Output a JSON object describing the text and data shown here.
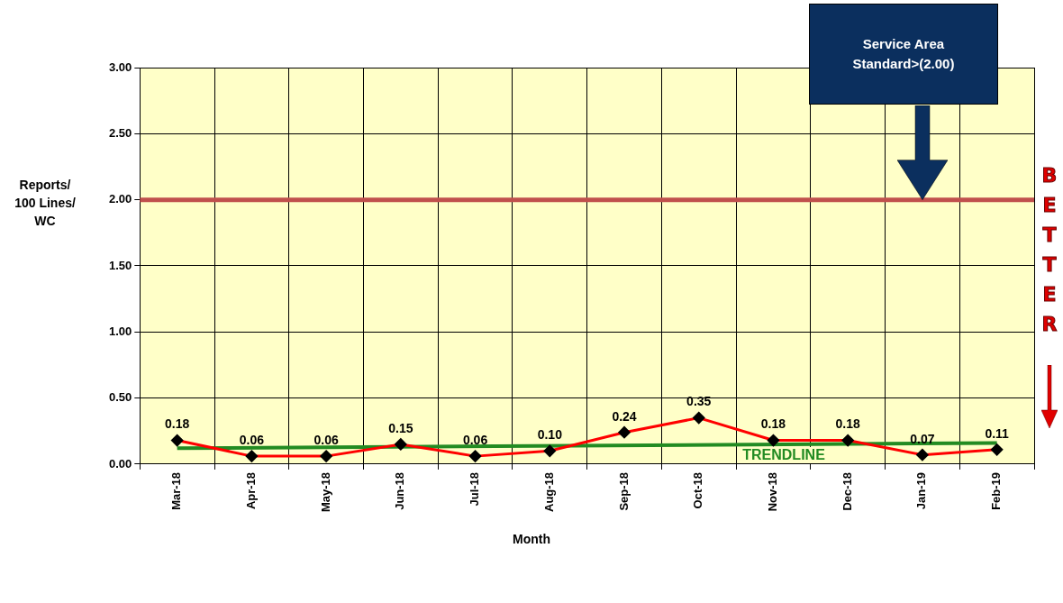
{
  "chart_data": {
    "type": "line",
    "xlabel": "Month",
    "ylabel": "Reports/\n100 Lines/\nWC",
    "categories": [
      "Mar-18",
      "Apr-18",
      "May-18",
      "Jun-18",
      "Jul-18",
      "Aug-18",
      "Sep-18",
      "Oct-18",
      "Nov-18",
      "Dec-18",
      "Jan-19",
      "Feb-19"
    ],
    "series": [
      {
        "color": "#ff0000",
        "values": [
          0.18,
          0.06,
          0.06,
          0.15,
          0.06,
          0.1,
          0.24,
          0.35,
          0.18,
          0.18,
          0.07,
          0.11
        ],
        "value_labels": [
          "0.18",
          "0.06",
          "0.06",
          "0.15",
          "0.06",
          "0.10",
          "0.24",
          "0.35",
          "0.18",
          "0.18",
          "0.07",
          "0.11"
        ],
        "marker": "diamond"
      },
      {
        "name": "TRENDLINE",
        "type": "line",
        "color": "#228b22",
        "x": [
          "Mar-18",
          "Feb-19"
        ],
        "values": [
          0.12,
          0.16
        ],
        "marker": "none"
      }
    ],
    "ylim": [
      0,
      3
    ],
    "yticks": [
      {
        "value": 0,
        "label": "0.00"
      },
      {
        "value": 0.5,
        "label": "0.50"
      },
      {
        "value": 1,
        "label": "1.00"
      },
      {
        "value": 1.5,
        "label": "1.50"
      },
      {
        "value": 2,
        "label": "2.00"
      },
      {
        "value": 2.5,
        "label": "2.50"
      },
      {
        "value": 3,
        "label": "3.00"
      }
    ],
    "ref_lines": [
      {
        "axis": "y",
        "value": 2,
        "color": "#c0504d"
      }
    ],
    "annotations": [
      "Service Area Standard>(2.00)",
      "BETTER"
    ],
    "grid": true,
    "legend": false
  }
}
